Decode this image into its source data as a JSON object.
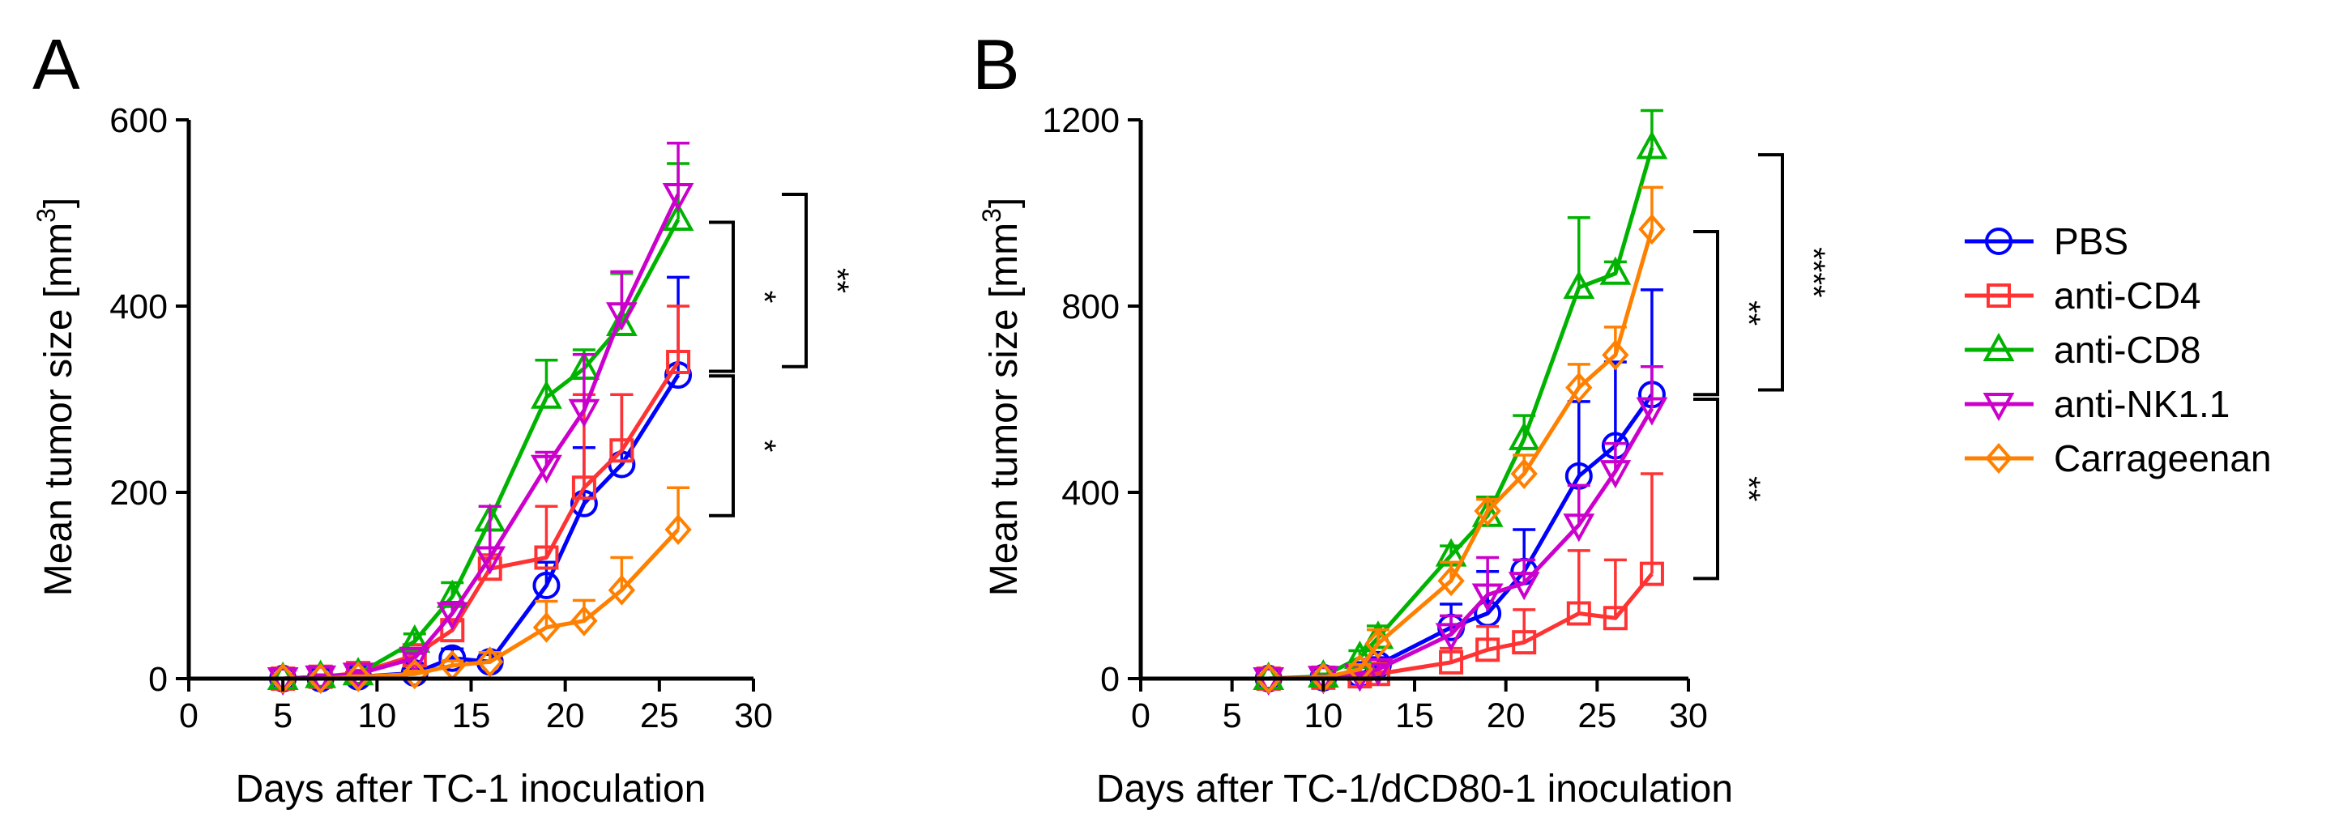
{
  "series_style": [
    {
      "name": "PBS",
      "color": "#0000ff",
      "marker": "circle"
    },
    {
      "name": "anti-CD4",
      "color": "#ff3333",
      "marker": "square"
    },
    {
      "name": "anti-CD8",
      "color": "#00b300",
      "marker": "triangle-up"
    },
    {
      "name": "anti-NK1.1",
      "color": "#cc00cc",
      "marker": "triangle-down"
    },
    {
      "name": "Carrageenan",
      "color": "#ff8000",
      "marker": "diamond"
    }
  ],
  "legend": {
    "placement": "right",
    "entries": [
      "PBS",
      "anti-CD4",
      "anti-CD8",
      "anti-NK1.1",
      "Carrageenan"
    ]
  },
  "chart_data": [
    {
      "panel": "A",
      "type": "line",
      "xlabel": "Days after TC-1 inoculation",
      "ylabel": "Mean tumor size [mm",
      "ylabel_superscript": "3",
      "ylabel_suffix": "]",
      "xlim": [
        0,
        30
      ],
      "ylim": [
        0,
        600
      ],
      "xticks": [
        0,
        5,
        10,
        15,
        20,
        25,
        30
      ],
      "yticks": [
        0,
        200,
        400,
        600
      ],
      "series": [
        {
          "name": "PBS",
          "x": [
            5,
            7,
            9,
            12,
            14,
            16,
            19,
            21,
            23,
            26
          ],
          "values": [
            0,
            0,
            2,
            6,
            22,
            18,
            100,
            188,
            230,
            326
          ],
          "err": [
            0,
            0,
            2,
            4,
            10,
            8,
            25,
            60,
            75,
            105
          ]
        },
        {
          "name": "anti-CD4",
          "x": [
            5,
            7,
            9,
            12,
            14,
            16,
            19,
            21,
            23,
            26
          ],
          "values": [
            0,
            2,
            6,
            25,
            52,
            118,
            130,
            205,
            245,
            340
          ],
          "err": [
            0,
            2,
            3,
            6,
            10,
            15,
            55,
            100,
            60,
            60
          ]
        },
        {
          "name": "anti-CD8",
          "x": [
            5,
            7,
            9,
            12,
            14,
            16,
            19,
            21,
            23,
            26
          ],
          "values": [
            0,
            2,
            5,
            40,
            88,
            170,
            302,
            333,
            380,
            493
          ],
          "err": [
            0,
            2,
            3,
            8,
            15,
            15,
            40,
            20,
            55,
            60
          ]
        },
        {
          "name": "anti-NK1.1",
          "x": [
            5,
            7,
            9,
            12,
            14,
            16,
            19,
            21,
            23,
            26
          ],
          "values": [
            0,
            2,
            5,
            22,
            70,
            130,
            228,
            288,
            392,
            520
          ],
          "err": [
            0,
            2,
            3,
            5,
            12,
            55,
            15,
            60,
            45,
            55
          ]
        },
        {
          "name": "Carrageenan",
          "x": [
            5,
            7,
            9,
            12,
            14,
            16,
            19,
            21,
            23,
            26
          ],
          "values": [
            0,
            0,
            2,
            5,
            14,
            18,
            55,
            62,
            95,
            160
          ],
          "err": [
            0,
            0,
            1,
            3,
            5,
            10,
            28,
            22,
            35,
            45
          ]
        }
      ],
      "significance": [
        {
          "label": "*",
          "from": 490,
          "to": 330
        },
        {
          "label": "**",
          "from": 520,
          "to": 335
        },
        {
          "label": "*",
          "from": 325,
          "to": 175
        }
      ]
    },
    {
      "panel": "B",
      "type": "line",
      "xlabel": "Days after TC-1/dCD80-1 inoculation",
      "ylabel": "Mean tumor size [mm",
      "ylabel_superscript": "3",
      "ylabel_suffix": "]",
      "xlim": [
        0,
        30
      ],
      "ylim": [
        0,
        1200
      ],
      "xticks": [
        0,
        5,
        10,
        15,
        20,
        25,
        30
      ],
      "yticks": [
        0,
        400,
        800,
        1200
      ],
      "series": [
        {
          "name": "PBS",
          "x": [
            7,
            10,
            12,
            13,
            17,
            19,
            21,
            24,
            26,
            28
          ],
          "values": [
            0,
            2,
            8,
            30,
            110,
            140,
            230,
            435,
            500,
            610
          ],
          "err": [
            0,
            3,
            6,
            15,
            50,
            90,
            90,
            160,
            180,
            225
          ]
        },
        {
          "name": "anti-CD4",
          "x": [
            7,
            10,
            12,
            13,
            17,
            19,
            21,
            24,
            26,
            28
          ],
          "values": [
            0,
            2,
            5,
            10,
            35,
            62,
            78,
            140,
            130,
            225
          ],
          "err": [
            0,
            2,
            3,
            5,
            30,
            50,
            70,
            135,
            125,
            215
          ]
        },
        {
          "name": "anti-CD8",
          "x": [
            7,
            10,
            12,
            13,
            17,
            19,
            21,
            24,
            26,
            28
          ],
          "values": [
            0,
            5,
            45,
            88,
            265,
            350,
            515,
            840,
            870,
            1140
          ],
          "err": [
            0,
            5,
            15,
            25,
            20,
            40,
            50,
            150,
            25,
            80
          ]
        },
        {
          "name": "anti-NK1.1",
          "x": [
            7,
            10,
            12,
            13,
            17,
            19,
            21,
            24,
            26,
            28
          ],
          "values": [
            0,
            3,
            8,
            20,
            95,
            180,
            205,
            330,
            445,
            580
          ],
          "err": [
            0,
            3,
            5,
            10,
            40,
            80,
            50,
            85,
            60,
            90
          ]
        },
        {
          "name": "Carrageenan",
          "x": [
            7,
            10,
            12,
            13,
            17,
            19,
            21,
            24,
            26,
            28
          ],
          "values": [
            0,
            2,
            20,
            75,
            210,
            360,
            440,
            625,
            695,
            965
          ],
          "err": [
            0,
            3,
            10,
            30,
            40,
            25,
            40,
            50,
            60,
            90
          ]
        }
      ],
      "significance": [
        {
          "label": "**",
          "from": 960,
          "to": 610
        },
        {
          "label": "****",
          "from": 1125,
          "to": 620
        },
        {
          "label": "**",
          "from": 600,
          "to": 215
        }
      ]
    }
  ]
}
